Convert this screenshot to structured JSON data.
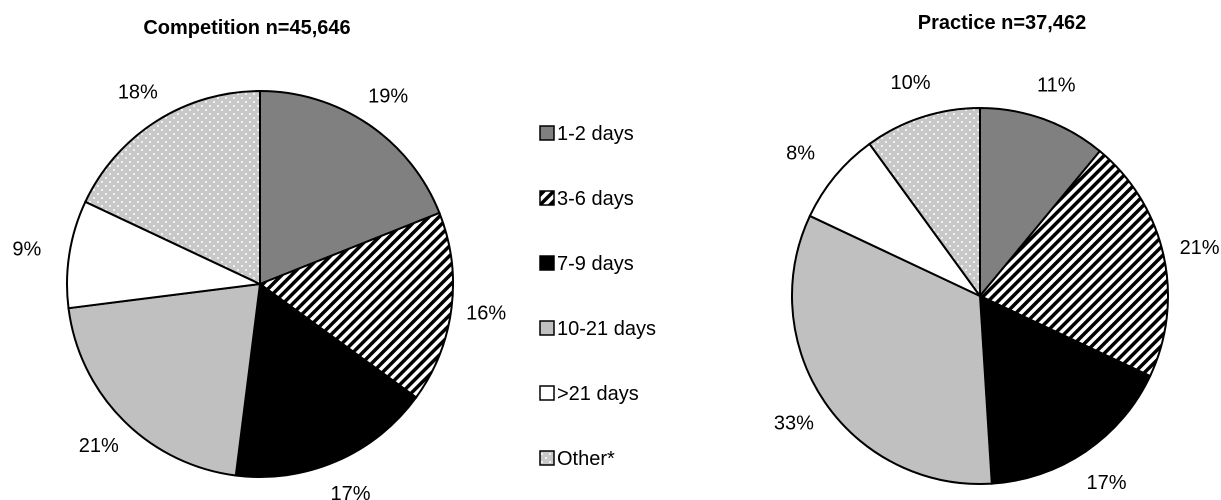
{
  "chart_data": [
    {
      "type": "pie",
      "title": "Competition n=45,646",
      "categories": [
        "1-2 days",
        "3-6 days",
        "7-9 days",
        "10-21 days",
        ">21 days",
        "Other*"
      ],
      "values": [
        19,
        16,
        17,
        21,
        9,
        18
      ],
      "labels": [
        "19%",
        "16%",
        "17%",
        "21%",
        "9%",
        "18%"
      ]
    },
    {
      "type": "pie",
      "title": "Practice n=37,462",
      "categories": [
        "1-2 days",
        "3-6 days",
        "7-9 days",
        "10-21 days",
        ">21 days",
        "Other*"
      ],
      "values": [
        11,
        21,
        17,
        33,
        8,
        10
      ],
      "labels": [
        "11%",
        "21%",
        "17%",
        "33%",
        "8%",
        "10%"
      ]
    }
  ],
  "legend": {
    "position": "center",
    "items": [
      "1-2 days",
      "3-6 days",
      "7-9 days",
      "10-21 days",
      ">21 days",
      "Other*"
    ]
  },
  "styles": {
    "1-2 days": "#808080",
    "3-6 days": "hatch-diagonal-black-white",
    "7-9 days": "#000000",
    "10-21 days": "#c0c0c0",
    ">21 days": "#ffffff",
    "Other*": "dotted-gray"
  }
}
